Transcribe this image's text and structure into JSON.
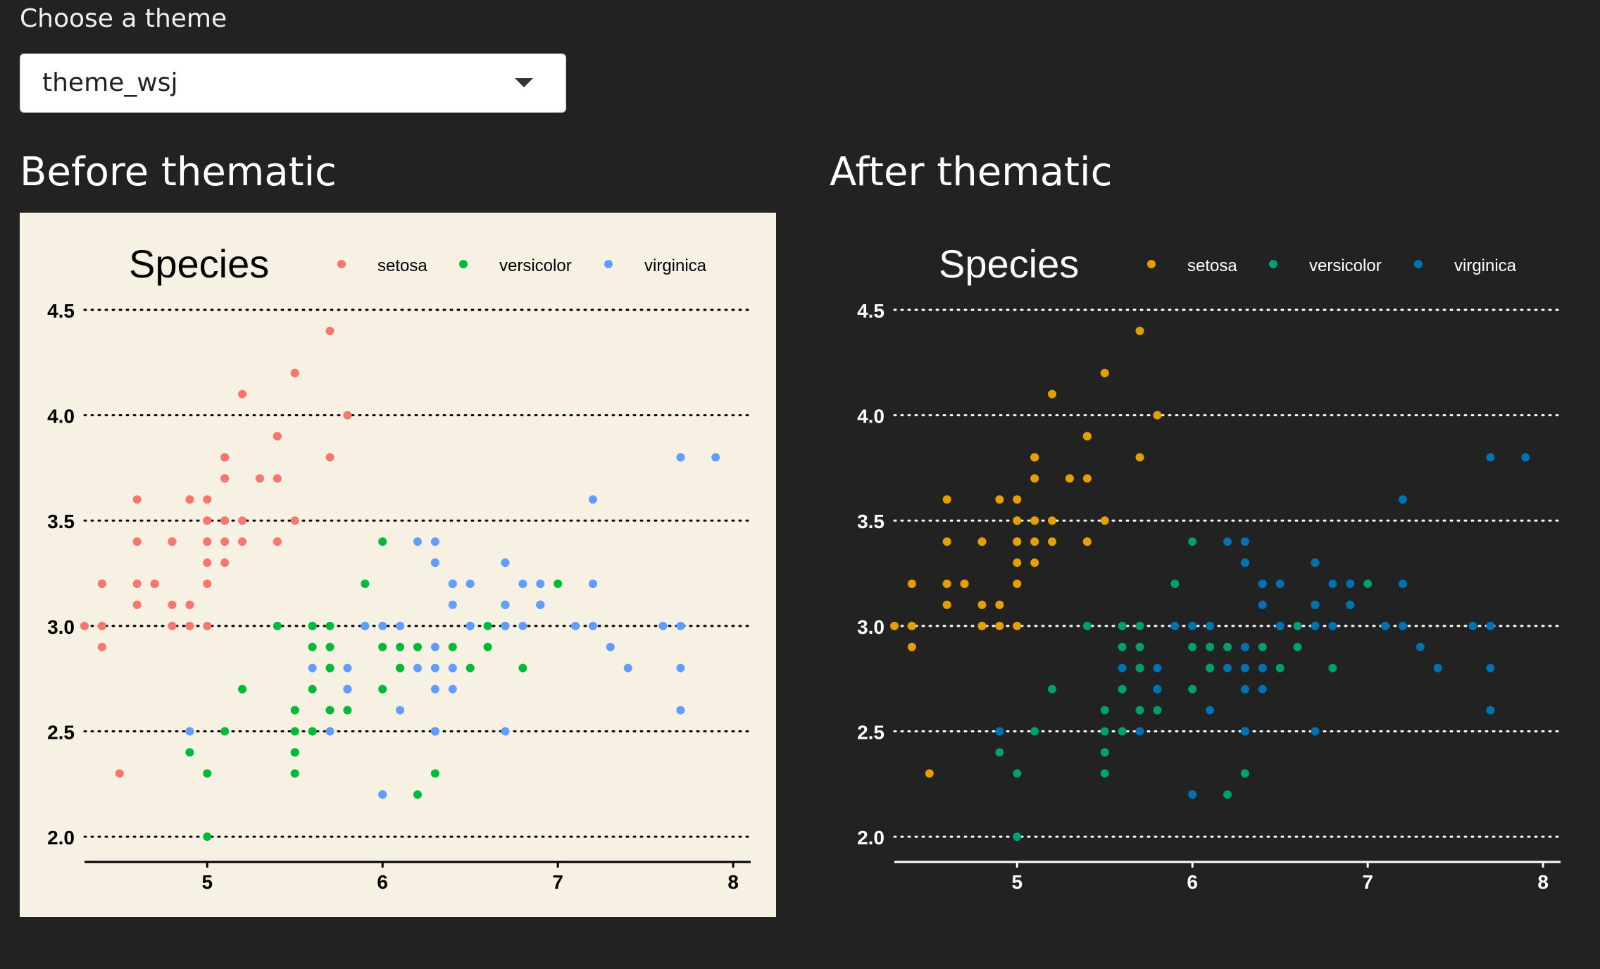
{
  "theme_selector": {
    "label": "Choose a theme",
    "value": "theme_wsj"
  },
  "before": {
    "heading": "Before thematic"
  },
  "after": {
    "heading": "After thematic"
  },
  "chart_data": [
    {
      "type": "scatter",
      "panel": "before",
      "title": "",
      "xlabel": "",
      "ylabel": "",
      "legend_title": "Species",
      "legend_position": "top",
      "xlim": [
        4.3,
        8.1
      ],
      "ylim": [
        1.88,
        4.56
      ],
      "xticks": [
        "5",
        "6",
        "7",
        "8"
      ],
      "yticks": [
        "2.0",
        "2.5",
        "3.0",
        "3.5",
        "4.0",
        "4.5"
      ],
      "grid": "horizontal dotted",
      "background": "#f6f1e3",
      "text_color": "#000000",
      "grid_color": "#000000",
      "colors": {
        "setosa": "#f8766d",
        "versicolor": "#00ba38",
        "virginica": "#619cff"
      }
    },
    {
      "type": "scatter",
      "panel": "after",
      "title": "",
      "xlabel": "",
      "ylabel": "",
      "legend_title": "Species",
      "legend_position": "top",
      "xlim": [
        4.3,
        8.1
      ],
      "ylim": [
        1.88,
        4.56
      ],
      "xticks": [
        "5",
        "6",
        "7",
        "8"
      ],
      "yticks": [
        "2.0",
        "2.5",
        "3.0",
        "3.5",
        "4.0",
        "4.5"
      ],
      "grid": "horizontal dotted",
      "background": "#222222",
      "text_color": "#ffffff",
      "grid_color": "#ffffff",
      "colors": {
        "setosa": "#e69f00",
        "versicolor": "#009e73",
        "virginica": "#0072b2"
      }
    }
  ],
  "series": [
    {
      "name": "setosa",
      "points": [
        [
          5.1,
          3.5
        ],
        [
          4.9,
          3.0
        ],
        [
          4.7,
          3.2
        ],
        [
          4.6,
          3.1
        ],
        [
          5.0,
          3.6
        ],
        [
          5.4,
          3.9
        ],
        [
          4.6,
          3.4
        ],
        [
          5.0,
          3.4
        ],
        [
          4.4,
          2.9
        ],
        [
          4.9,
          3.1
        ],
        [
          5.4,
          3.7
        ],
        [
          4.8,
          3.4
        ],
        [
          4.8,
          3.0
        ],
        [
          4.3,
          3.0
        ],
        [
          5.8,
          4.0
        ],
        [
          5.7,
          4.4
        ],
        [
          5.4,
          3.9
        ],
        [
          5.1,
          3.5
        ],
        [
          5.7,
          3.8
        ],
        [
          5.1,
          3.8
        ],
        [
          5.4,
          3.4
        ],
        [
          5.1,
          3.7
        ],
        [
          4.6,
          3.6
        ],
        [
          5.1,
          3.3
        ],
        [
          4.8,
          3.4
        ],
        [
          5.0,
          3.0
        ],
        [
          5.0,
          3.4
        ],
        [
          5.2,
          3.5
        ],
        [
          5.2,
          3.4
        ],
        [
          4.7,
          3.2
        ],
        [
          4.8,
          3.1
        ],
        [
          5.4,
          3.4
        ],
        [
          5.2,
          4.1
        ],
        [
          5.5,
          4.2
        ],
        [
          4.9,
          3.1
        ],
        [
          5.0,
          3.2
        ],
        [
          5.5,
          3.5
        ],
        [
          4.9,
          3.6
        ],
        [
          4.4,
          3.0
        ],
        [
          5.1,
          3.4
        ],
        [
          5.0,
          3.5
        ],
        [
          4.5,
          2.3
        ],
        [
          4.4,
          3.2
        ],
        [
          5.0,
          3.5
        ],
        [
          5.1,
          3.8
        ],
        [
          4.8,
          3.0
        ],
        [
          5.1,
          3.8
        ],
        [
          4.6,
          3.2
        ],
        [
          5.3,
          3.7
        ],
        [
          5.0,
          3.3
        ]
      ]
    },
    {
      "name": "versicolor",
      "points": [
        [
          7.0,
          3.2
        ],
        [
          6.4,
          3.2
        ],
        [
          6.9,
          3.1
        ],
        [
          5.5,
          2.3
        ],
        [
          6.5,
          2.8
        ],
        [
          5.7,
          2.8
        ],
        [
          6.3,
          3.3
        ],
        [
          4.9,
          2.4
        ],
        [
          6.6,
          2.9
        ],
        [
          5.2,
          2.7
        ],
        [
          5.0,
          2.0
        ],
        [
          5.9,
          3.0
        ],
        [
          6.0,
          2.2
        ],
        [
          6.1,
          2.9
        ],
        [
          5.6,
          2.9
        ],
        [
          6.7,
          3.1
        ],
        [
          5.6,
          3.0
        ],
        [
          5.8,
          2.7
        ],
        [
          6.2,
          2.2
        ],
        [
          5.6,
          2.5
        ],
        [
          5.9,
          3.2
        ],
        [
          6.1,
          2.8
        ],
        [
          6.3,
          2.5
        ],
        [
          6.1,
          2.8
        ],
        [
          6.4,
          2.9
        ],
        [
          6.6,
          3.0
        ],
        [
          6.8,
          2.8
        ],
        [
          6.7,
          3.0
        ],
        [
          6.0,
          2.9
        ],
        [
          5.7,
          2.6
        ],
        [
          5.5,
          2.4
        ],
        [
          5.5,
          2.4
        ],
        [
          5.8,
          2.7
        ],
        [
          6.0,
          2.7
        ],
        [
          5.4,
          3.0
        ],
        [
          6.0,
          3.4
        ],
        [
          6.7,
          3.1
        ],
        [
          6.3,
          2.3
        ],
        [
          5.6,
          3.0
        ],
        [
          5.5,
          2.5
        ],
        [
          5.5,
          2.6
        ],
        [
          6.1,
          3.0
        ],
        [
          5.8,
          2.6
        ],
        [
          5.0,
          2.3
        ],
        [
          5.6,
          2.7
        ],
        [
          5.7,
          3.0
        ],
        [
          5.7,
          2.9
        ],
        [
          6.2,
          2.9
        ],
        [
          5.1,
          2.5
        ],
        [
          5.7,
          2.8
        ]
      ]
    },
    {
      "name": "virginica",
      "points": [
        [
          6.3,
          3.3
        ],
        [
          5.8,
          2.7
        ],
        [
          7.1,
          3.0
        ],
        [
          6.3,
          2.9
        ],
        [
          6.5,
          3.0
        ],
        [
          7.6,
          3.0
        ],
        [
          4.9,
          2.5
        ],
        [
          7.3,
          2.9
        ],
        [
          6.7,
          2.5
        ],
        [
          7.2,
          3.6
        ],
        [
          6.5,
          3.2
        ],
        [
          6.4,
          2.7
        ],
        [
          6.8,
          3.0
        ],
        [
          5.7,
          2.5
        ],
        [
          5.8,
          2.8
        ],
        [
          6.4,
          3.2
        ],
        [
          6.5,
          3.0
        ],
        [
          7.7,
          3.8
        ],
        [
          7.7,
          2.6
        ],
        [
          6.0,
          2.2
        ],
        [
          6.9,
          3.2
        ],
        [
          5.6,
          2.8
        ],
        [
          7.7,
          2.8
        ],
        [
          6.3,
          2.7
        ],
        [
          6.7,
          3.3
        ],
        [
          7.2,
          3.2
        ],
        [
          6.2,
          2.8
        ],
        [
          6.1,
          3.0
        ],
        [
          6.4,
          2.8
        ],
        [
          7.2,
          3.0
        ],
        [
          7.4,
          2.8
        ],
        [
          7.9,
          3.8
        ],
        [
          6.4,
          2.8
        ],
        [
          6.3,
          2.8
        ],
        [
          6.1,
          2.6
        ],
        [
          7.7,
          3.0
        ],
        [
          6.3,
          3.4
        ],
        [
          6.4,
          3.1
        ],
        [
          6.0,
          3.0
        ],
        [
          6.9,
          3.1
        ],
        [
          6.7,
          3.1
        ],
        [
          6.9,
          3.1
        ],
        [
          5.8,
          2.7
        ],
        [
          6.8,
          3.2
        ],
        [
          6.7,
          3.3
        ],
        [
          6.7,
          3.0
        ],
        [
          6.3,
          2.5
        ],
        [
          6.5,
          3.0
        ],
        [
          6.2,
          3.4
        ],
        [
          5.9,
          3.0
        ]
      ]
    }
  ]
}
